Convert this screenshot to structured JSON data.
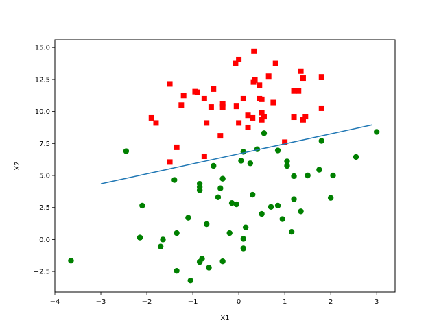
{
  "chart_data": {
    "type": "scatter",
    "title": "",
    "xlabel": "X1",
    "ylabel": "X2",
    "xlim": [
      -4,
      3.4
    ],
    "ylim": [
      -4.1,
      15.6
    ],
    "xticks": [
      -4,
      -3,
      -2,
      -1,
      0,
      1,
      2,
      3
    ],
    "xtick_labels": [
      "−4",
      "−3",
      "−2",
      "−1",
      "0",
      "1",
      "2",
      "3"
    ],
    "yticks": [
      -2.5,
      0.0,
      2.5,
      5.0,
      7.5,
      10.0,
      12.5,
      15.0
    ],
    "ytick_labels": [
      "−2.5",
      "0.0",
      "2.5",
      "5.0",
      "7.5",
      "10.0",
      "12.5",
      "15.0"
    ],
    "grid": false,
    "legend": "none",
    "series": [
      {
        "marker": "square",
        "color": "#ff0000",
        "points": [
          [
            0.33,
            14.7
          ],
          [
            -0.07,
            13.75
          ],
          [
            0.0,
            14.05
          ],
          [
            0.8,
            13.75
          ],
          [
            1.35,
            13.15
          ],
          [
            0.32,
            12.3
          ],
          [
            0.35,
            12.45
          ],
          [
            0.65,
            12.75
          ],
          [
            1.4,
            12.6
          ],
          [
            1.8,
            12.7
          ],
          [
            -1.5,
            12.15
          ],
          [
            -0.55,
            11.75
          ],
          [
            -0.9,
            11.5
          ],
          [
            0.45,
            12.05
          ],
          [
            1.2,
            11.6
          ],
          [
            1.3,
            11.6
          ],
          [
            -1.2,
            11.25
          ],
          [
            -0.95,
            11.55
          ],
          [
            -0.75,
            11.0
          ],
          [
            -0.35,
            10.6
          ],
          [
            0.1,
            11.0
          ],
          [
            0.45,
            11.0
          ],
          [
            0.5,
            10.95
          ],
          [
            0.75,
            10.7
          ],
          [
            -1.25,
            10.5
          ],
          [
            -0.6,
            10.35
          ],
          [
            -0.35,
            10.35
          ],
          [
            -0.05,
            10.4
          ],
          [
            1.8,
            10.25
          ],
          [
            0.5,
            9.9
          ],
          [
            0.55,
            9.6
          ],
          [
            0.2,
            9.7
          ],
          [
            0.3,
            9.5
          ],
          [
            0.5,
            9.35
          ],
          [
            1.2,
            9.55
          ],
          [
            1.4,
            9.35
          ],
          [
            1.45,
            9.6
          ],
          [
            -1.9,
            9.5
          ],
          [
            -1.8,
            9.1
          ],
          [
            -0.7,
            9.1
          ],
          [
            0.0,
            9.1
          ],
          [
            0.2,
            8.75
          ],
          [
            -0.4,
            8.1
          ],
          [
            1.0,
            7.6
          ],
          [
            -1.35,
            7.2
          ],
          [
            -0.75,
            6.5
          ],
          [
            -1.5,
            6.05
          ]
        ]
      },
      {
        "marker": "circle",
        "color": "#008000",
        "points": [
          [
            -2.45,
            6.9
          ],
          [
            -1.4,
            4.65
          ],
          [
            -0.85,
            4.35
          ],
          [
            -0.85,
            4.1
          ],
          [
            -0.85,
            3.85
          ],
          [
            -0.35,
            4.75
          ],
          [
            -0.4,
            4.0
          ],
          [
            -0.45,
            3.3
          ],
          [
            -0.55,
            5.75
          ],
          [
            -2.1,
            2.65
          ],
          [
            -2.15,
            0.15
          ],
          [
            -1.65,
            0.0
          ],
          [
            -1.7,
            -0.55
          ],
          [
            -1.35,
            0.5
          ],
          [
            -1.1,
            1.7
          ],
          [
            -0.7,
            1.2
          ],
          [
            -0.2,
            0.5
          ],
          [
            -0.15,
            2.85
          ],
          [
            -0.05,
            2.75
          ],
          [
            0.1,
            0.05
          ],
          [
            0.1,
            -0.7
          ],
          [
            0.15,
            0.95
          ],
          [
            0.3,
            3.5
          ],
          [
            0.5,
            2.0
          ],
          [
            0.7,
            2.55
          ],
          [
            0.85,
            2.65
          ],
          [
            0.95,
            1.6
          ],
          [
            1.15,
            0.6
          ],
          [
            1.2,
            3.15
          ],
          [
            1.35,
            2.2
          ],
          [
            0.05,
            6.15
          ],
          [
            0.25,
            5.95
          ],
          [
            0.1,
            6.85
          ],
          [
            0.4,
            7.05
          ],
          [
            0.55,
            8.3
          ],
          [
            0.85,
            6.95
          ],
          [
            1.05,
            5.75
          ],
          [
            1.05,
            6.1
          ],
          [
            1.2,
            4.95
          ],
          [
            1.5,
            5.0
          ],
          [
            1.75,
            5.45
          ],
          [
            1.8,
            7.7
          ],
          [
            2.0,
            3.25
          ],
          [
            2.05,
            5.0
          ],
          [
            2.55,
            6.45
          ],
          [
            3.0,
            8.4
          ],
          [
            -3.65,
            -1.65
          ],
          [
            -1.35,
            -2.45
          ],
          [
            -1.05,
            -3.2
          ],
          [
            -0.8,
            -1.5
          ],
          [
            -0.85,
            -1.75
          ],
          [
            -0.65,
            -2.2
          ],
          [
            -0.35,
            -1.7
          ]
        ]
      },
      {
        "type": "line",
        "color": "#1f77b4",
        "points": [
          [
            -3.0,
            4.35
          ],
          [
            2.9,
            8.95
          ]
        ]
      }
    ]
  }
}
